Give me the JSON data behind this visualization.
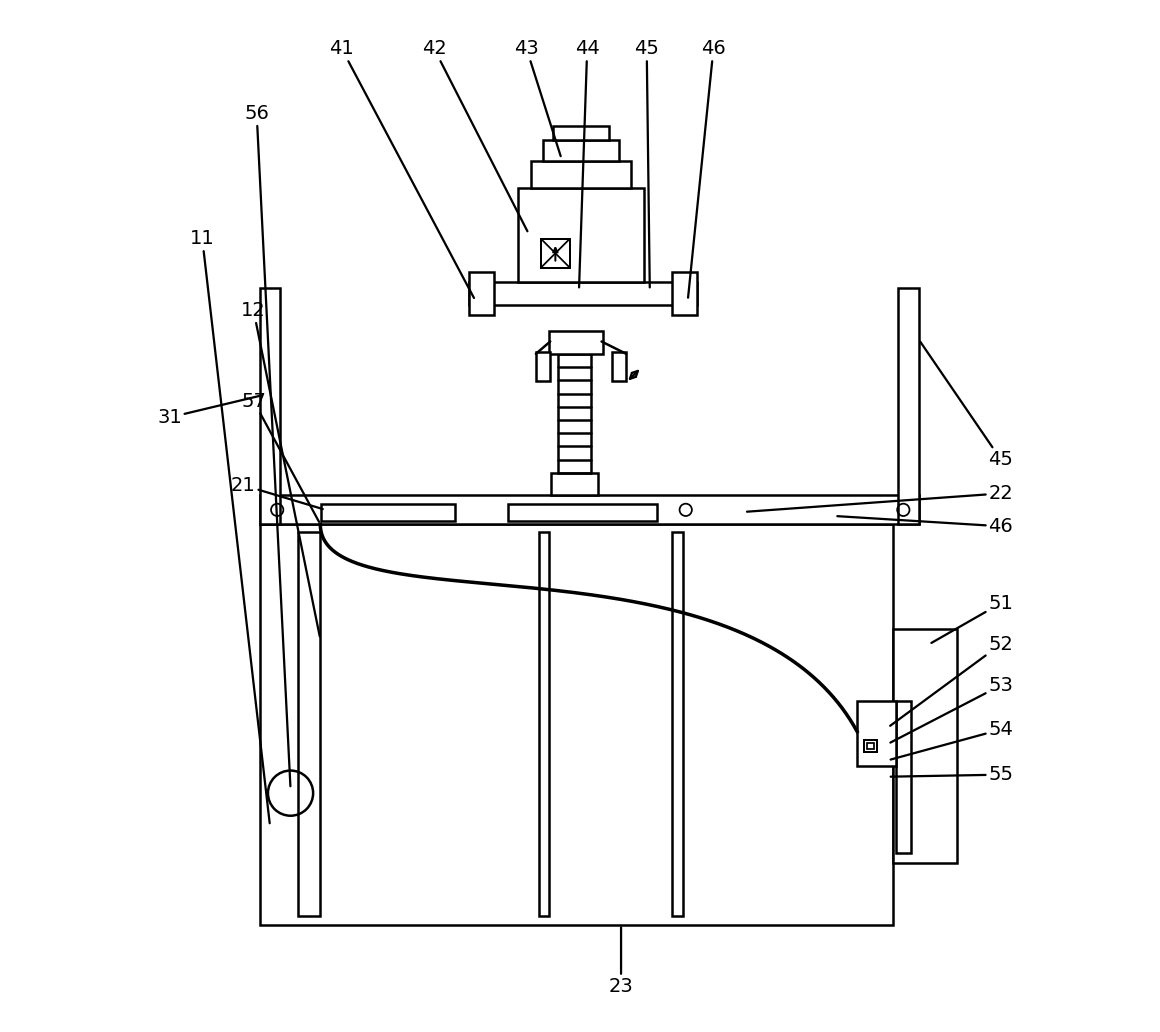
{
  "bg_color": "#ffffff",
  "lc": "#000000",
  "lw": 1.8,
  "fig_w": 11.6,
  "fig_h": 10.32,
  "dpi": 100
}
